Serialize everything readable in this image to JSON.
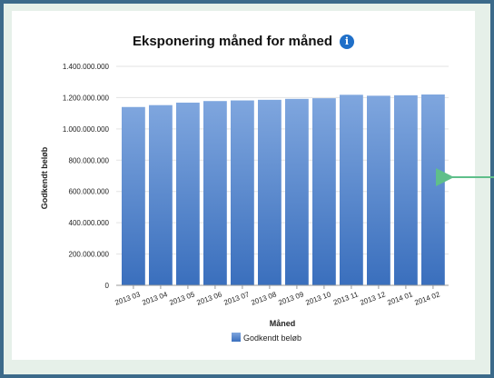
{
  "chart_data": {
    "type": "bar",
    "title": "Eksponering måned for måned",
    "xlabel": "Måned",
    "ylabel": "Godkendt beløb",
    "categories": [
      "2013 03",
      "2013 04",
      "2013 05",
      "2013 06",
      "2013 07",
      "2013 08",
      "2013 09",
      "2013 10",
      "2013 11",
      "2013 12",
      "2014 01",
      "2014 02"
    ],
    "series": [
      {
        "name": "Godkendt beløb",
        "values": [
          1140000000,
          1152000000,
          1168000000,
          1178000000,
          1182000000,
          1186000000,
          1192000000,
          1196000000,
          1218000000,
          1212000000,
          1215000000,
          1220000000
        ]
      }
    ],
    "ylim": [
      0,
      1400000000
    ],
    "yticks": [
      "0",
      "200.000.000",
      "400.000.000",
      "600.000.000",
      "800.000.000",
      "1.000.000.000",
      "1.200.000.000",
      "1.400.000.000"
    ],
    "grid": true,
    "legend_position": "bottom",
    "colors": {
      "bar_top": "#7fa6de",
      "bar_bottom": "#3a6fbd",
      "arrow": "#5fbf8a",
      "info_icon": "#1f6fc8"
    }
  }
}
